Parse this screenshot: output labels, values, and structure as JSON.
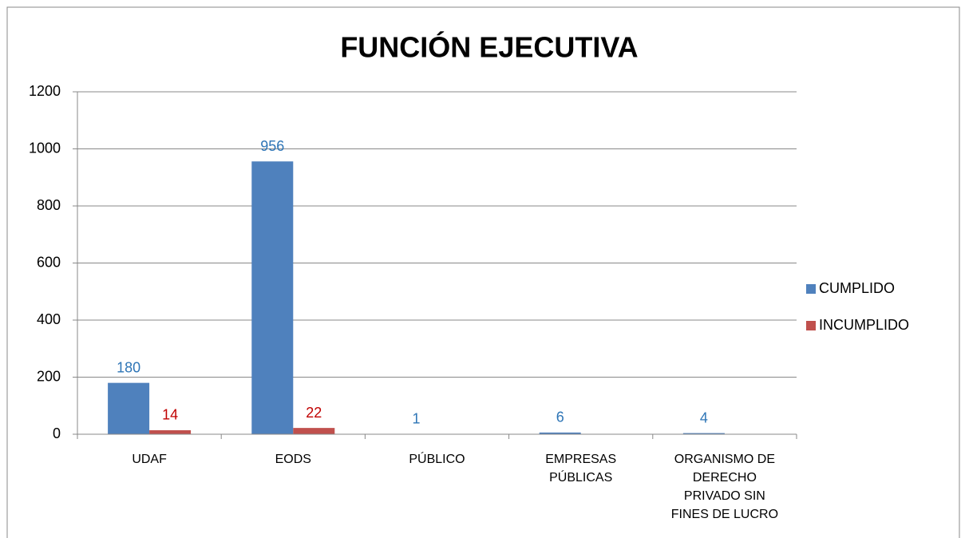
{
  "chart_data": {
    "type": "bar",
    "title": "FUNCIÓN EJECUTIVA",
    "categories": [
      "UDAF",
      "EODS",
      "PÚBLICO",
      "EMPRESAS PÚBLICAS",
      "ORGANISMO DE DERECHO PRIVADO SIN FINES DE LUCRO"
    ],
    "series": [
      {
        "name": "CUMPLIDO",
        "color": "#4f81bd",
        "label_color": "#2e75b6",
        "values": [
          180,
          956,
          1,
          6,
          4
        ]
      },
      {
        "name": "INCUMPLIDO",
        "color": "#c0504d",
        "label_color": "#c00000",
        "values": [
          14,
          22,
          null,
          null,
          null
        ]
      }
    ],
    "ylim": [
      0,
      1200
    ],
    "yticks": [
      0,
      200,
      400,
      600,
      800,
      1000,
      1200
    ],
    "grid": true,
    "legend": "right"
  }
}
